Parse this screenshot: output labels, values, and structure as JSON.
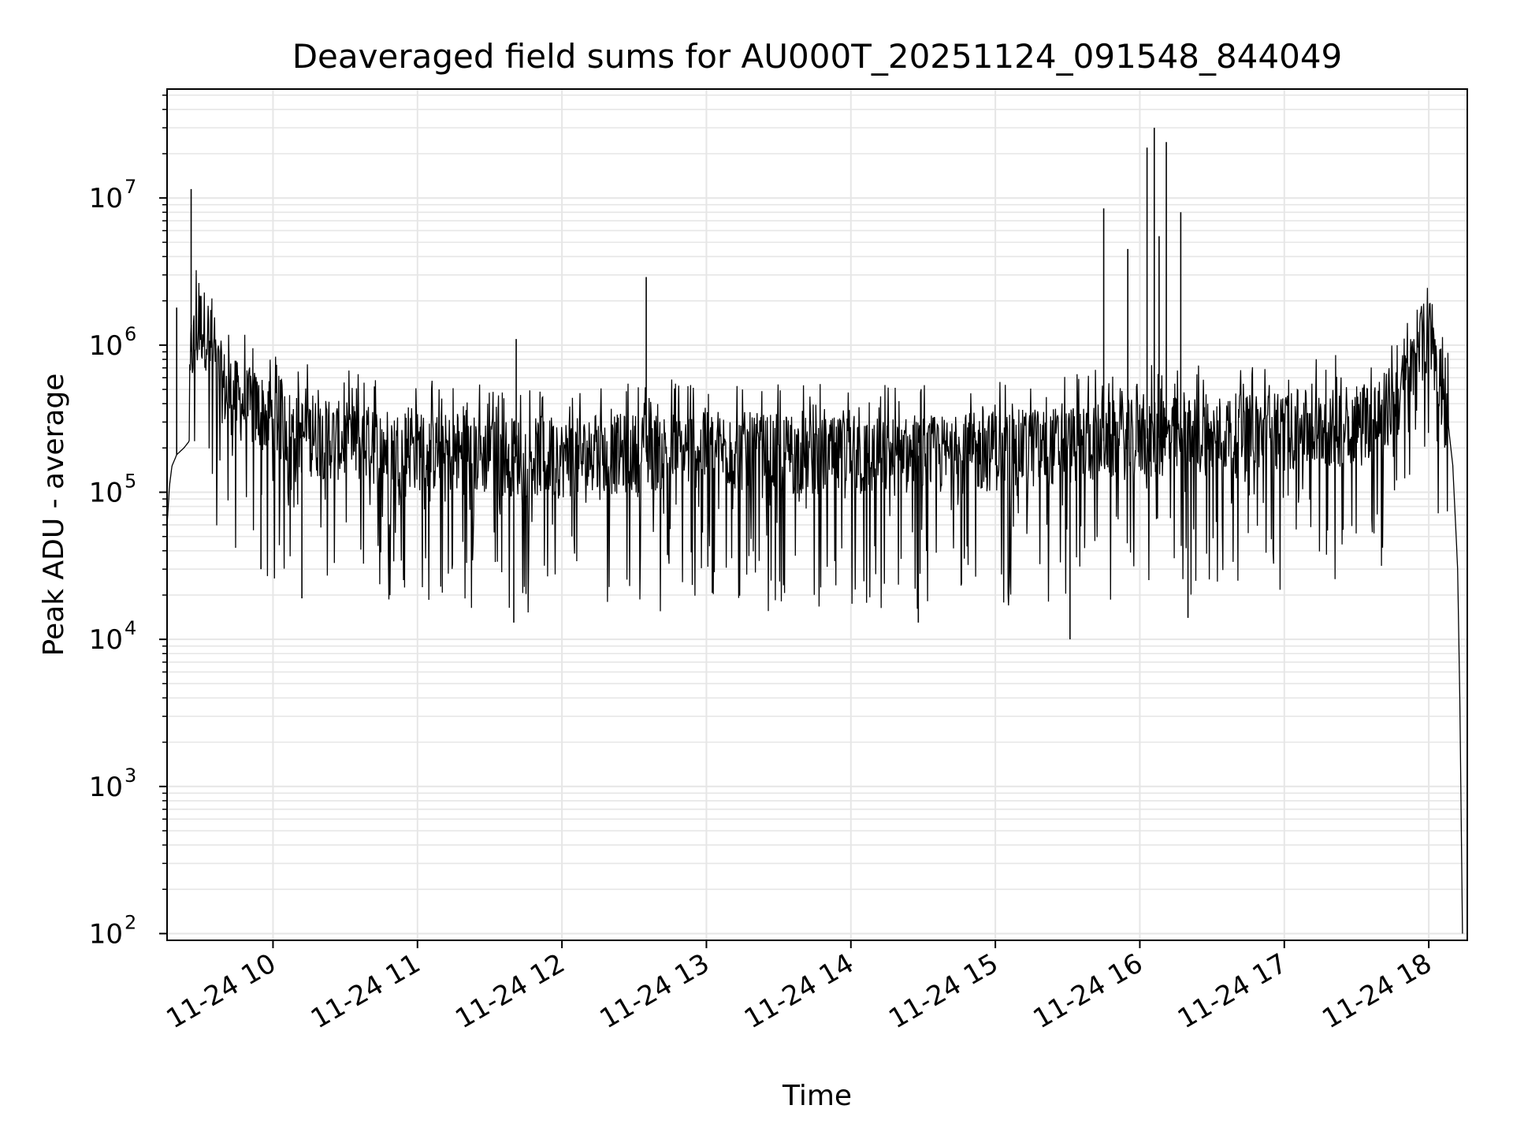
{
  "chart_data": {
    "type": "line",
    "title": "Deaveraged field sums for AU000T_20251124_091548_844049",
    "xlabel": "Time",
    "ylabel": "Peak ADU - average",
    "yscale": "log",
    "xlim": [
      "2025-11-24 09:16",
      "2025-11-24 18:16"
    ],
    "ylim": [
      90,
      55000000
    ],
    "grid": true,
    "line_color": "#000000",
    "grid_color": "#e6e6e6",
    "x_ticks": [
      {
        "value": "2025-11-24 10:00",
        "label": "11-24 10"
      },
      {
        "value": "2025-11-24 11:00",
        "label": "11-24 11"
      },
      {
        "value": "2025-11-24 12:00",
        "label": "11-24 12"
      },
      {
        "value": "2025-11-24 13:00",
        "label": "11-24 13"
      },
      {
        "value": "2025-11-24 14:00",
        "label": "11-24 14"
      },
      {
        "value": "2025-11-24 15:00",
        "label": "11-24 15"
      },
      {
        "value": "2025-11-24 16:00",
        "label": "11-24 16"
      },
      {
        "value": "2025-11-24 17:00",
        "label": "11-24 17"
      },
      {
        "value": "2025-11-24 18:00",
        "label": "11-24 18"
      }
    ],
    "y_ticks": [
      {
        "value": 100,
        "base": "10",
        "exp": "2"
      },
      {
        "value": 1000,
        "base": "10",
        "exp": "3"
      },
      {
        "value": 10000,
        "base": "10",
        "exp": "4"
      },
      {
        "value": 100000,
        "base": "10",
        "exp": "5"
      },
      {
        "value": 1000000,
        "base": "10",
        "exp": "6"
      },
      {
        "value": 10000000,
        "base": "10",
        "exp": "7"
      }
    ],
    "series": [
      {
        "x": [
          "2025-11-24 09:16",
          "2025-11-24 09:17",
          "2025-11-24 09:18",
          "2025-11-24 09:20",
          "2025-11-24 09:23",
          "2025-11-24 09:25",
          "2025-11-24 09:26",
          "2025-11-24 09:30",
          "2025-11-24 09:33",
          "2025-11-24 09:36",
          "2025-11-24 09:40",
          "2025-11-24 09:45",
          "2025-11-24 09:50",
          "2025-11-24 09:55",
          "2025-11-24 10:00",
          "2025-11-24 10:10",
          "2025-11-24 10:20",
          "2025-11-24 10:40",
          "2025-11-24 11:00",
          "2025-11-24 11:20",
          "2025-11-24 11:40",
          "2025-11-24 12:00",
          "2025-11-24 12:20",
          "2025-11-24 12:40",
          "2025-11-24 13:00",
          "2025-11-24 13:20",
          "2025-11-24 13:40",
          "2025-11-24 14:00",
          "2025-11-24 14:20",
          "2025-11-24 14:40",
          "2025-11-24 15:00",
          "2025-11-24 15:20",
          "2025-11-24 15:40",
          "2025-11-24 16:00",
          "2025-11-24 16:20",
          "2025-11-24 16:40",
          "2025-11-24 17:00",
          "2025-11-24 17:20",
          "2025-11-24 17:40",
          "2025-11-24 17:50",
          "2025-11-24 17:56",
          "2025-11-24 18:00",
          "2025-11-24 18:04",
          "2025-11-24 18:08",
          "2025-11-24 18:10",
          "2025-11-24 18:12",
          "2025-11-24 18:13",
          "2025-11-24 18:14"
        ],
        "y": [
          60000,
          110000,
          150000,
          180000,
          200000,
          220000,
          900000,
          1400000,
          1200000,
          700000,
          500000,
          420000,
          380000,
          350000,
          320000,
          250000,
          230000,
          210000,
          190000,
          180000,
          175000,
          170000,
          180000,
          190000,
          200000,
          185000,
          175000,
          170000,
          175000,
          180000,
          190000,
          200000,
          220000,
          230000,
          240000,
          250000,
          260000,
          270000,
          330000,
          500000,
          900000,
          1200000,
          700000,
          300000,
          150000,
          30000,
          3000,
          100
        ]
      }
    ],
    "spikes": [
      {
        "x": "2025-11-24 09:20",
        "y": 1800000
      },
      {
        "x": "2025-11-24 09:26",
        "y": 11500000
      },
      {
        "x": "2025-11-24 09:55",
        "y": 30000
      },
      {
        "x": "2025-11-24 10:12",
        "y": 19000
      },
      {
        "x": "2025-11-24 11:41",
        "y": 1100000
      },
      {
        "x": "2025-11-24 11:40",
        "y": 13000
      },
      {
        "x": "2025-11-24 12:35",
        "y": 2900000
      },
      {
        "x": "2025-11-24 14:28",
        "y": 13000
      },
      {
        "x": "2025-11-24 15:31",
        "y": 10000
      },
      {
        "x": "2025-11-24 15:45",
        "y": 8500000
      },
      {
        "x": "2025-11-24 15:55",
        "y": 4500000
      },
      {
        "x": "2025-11-24 16:03",
        "y": 22000000
      },
      {
        "x": "2025-11-24 16:06",
        "y": 30000000
      },
      {
        "x": "2025-11-24 16:08",
        "y": 5500000
      },
      {
        "x": "2025-11-24 16:11",
        "y": 24000000
      },
      {
        "x": "2025-11-24 16:17",
        "y": 8000000
      },
      {
        "x": "2025-11-24 16:20",
        "y": 14000
      }
    ]
  }
}
